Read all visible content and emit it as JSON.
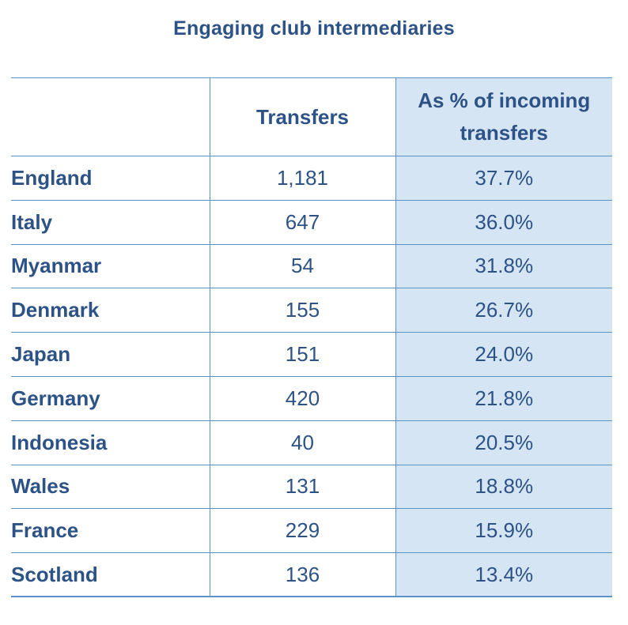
{
  "chart_data": {
    "type": "table",
    "title": "Engaging club intermediaries",
    "columns": [
      "",
      "Transfers",
      "As % of incoming transfers"
    ],
    "rows": [
      {
        "country": "England",
        "transfers": "1,181",
        "pct": "37.7%"
      },
      {
        "country": "Italy",
        "transfers": "647",
        "pct": "36.0%"
      },
      {
        "country": "Myanmar",
        "transfers": "54",
        "pct": "31.8%"
      },
      {
        "country": "Denmark",
        "transfers": "155",
        "pct": "26.7%"
      },
      {
        "country": "Japan",
        "transfers": "151",
        "pct": "24.0%"
      },
      {
        "country": "Germany",
        "transfers": "420",
        "pct": "21.8%"
      },
      {
        "country": "Indonesia",
        "transfers": "40",
        "pct": "20.5%"
      },
      {
        "country": "Wales",
        "transfers": "131",
        "pct": "18.8%"
      },
      {
        "country": "France",
        "transfers": "229",
        "pct": "15.9%"
      },
      {
        "country": "Scotland",
        "transfers": "136",
        "pct": "13.4%"
      }
    ],
    "colors": {
      "text": "#2d5286",
      "rule": "#5b92c8",
      "highlight_column": "#d5e5f4"
    }
  }
}
